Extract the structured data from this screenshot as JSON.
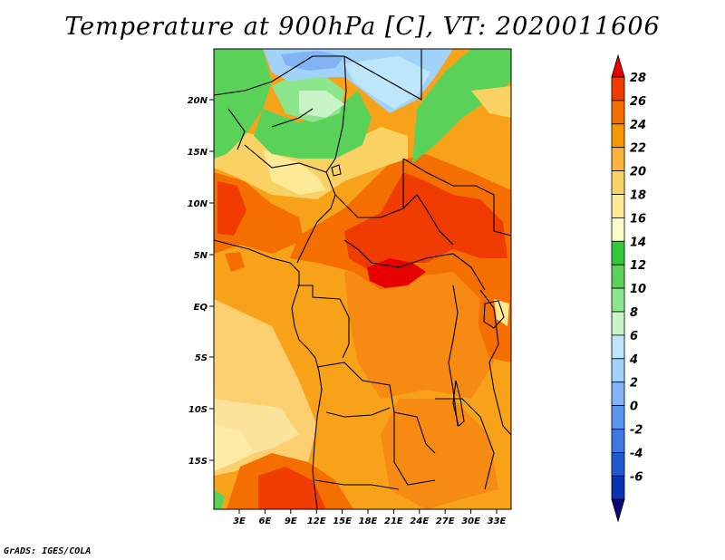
{
  "title": "Temperature at 900hPa [C], VT: 2020011606",
  "credit": "GrADS: IGES/COLA",
  "map": {
    "lon_labels": [
      "3E",
      "6E",
      "9E",
      "12E",
      "15E",
      "18E",
      "21E",
      "24E",
      "27E",
      "30E",
      "33E"
    ],
    "lat_labels": [
      "20N",
      "15N",
      "10N",
      "5N",
      "EQ",
      "5S",
      "10S",
      "15S"
    ]
  },
  "colorbar": {
    "labels": [
      "28",
      "26",
      "24",
      "22",
      "20",
      "18",
      "16",
      "14",
      "12",
      "10",
      "8",
      "6",
      "4",
      "2",
      "0",
      "-2",
      "-4",
      "-6"
    ],
    "colors": [
      "#e60000",
      "#f03c00",
      "#f56e00",
      "#f89600",
      "#fab43c",
      "#fad264",
      "#fcea96",
      "#fcfcc8",
      "#32c83c",
      "#5ad25a",
      "#8ce68c",
      "#c8f5c8",
      "#bee6fa",
      "#a0d2fa",
      "#82b4f5",
      "#5a96f0",
      "#3c78e6",
      "#1e5ad2",
      "#0a32b4",
      "#050a6e"
    ]
  }
}
